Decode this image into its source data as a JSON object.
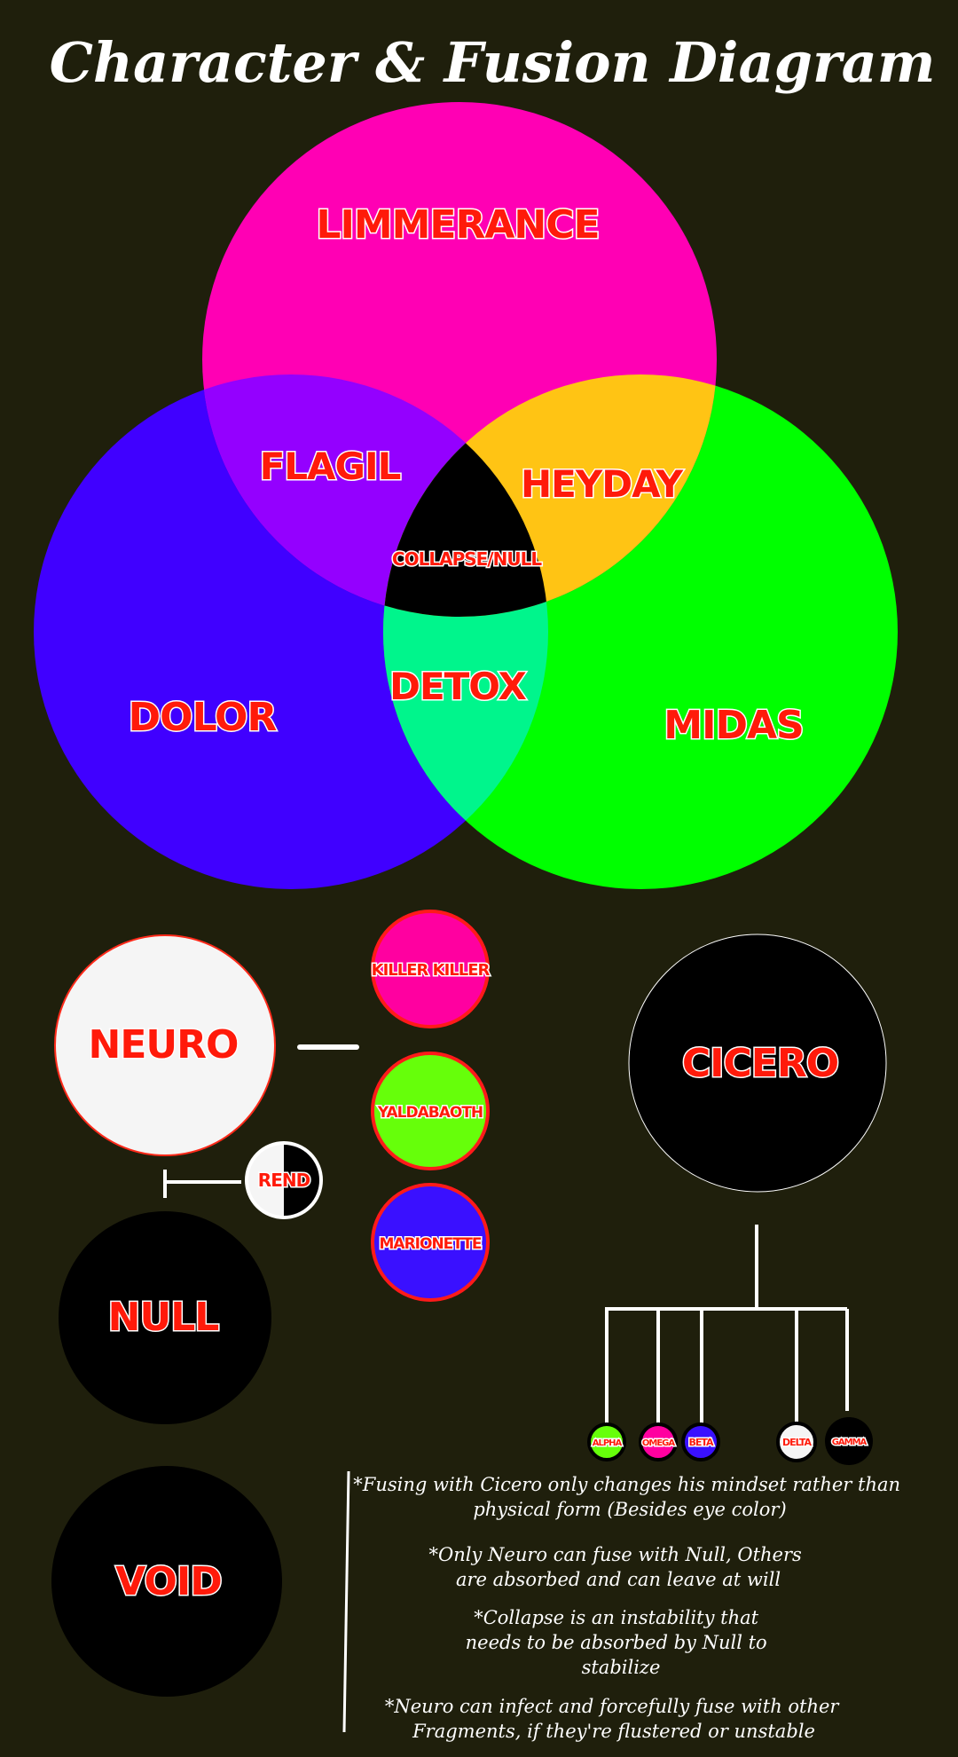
{
  "title": "Character & Fusion Diagram",
  "venn": {
    "top": "LIMMERANCE",
    "left": "DOLOR",
    "right": "MIDAS",
    "top_left": "FLAGIL",
    "top_right": "HEYDAY",
    "bottom": "DETOX",
    "center": "COLLAPSE/NULL"
  },
  "neuro_group": {
    "main": "NEURO",
    "members": [
      "KILLER KILLER",
      "YALDABAOTH",
      "MARIONETTE"
    ],
    "rend": "REND",
    "null": "NULL",
    "void": "VOID"
  },
  "cicero_group": {
    "main": "CICERO",
    "children": [
      "ALPHA",
      "OMEGA",
      "BETA",
      "DELTA",
      "GAMMA"
    ]
  },
  "notes": [
    [
      "*Fusing with Cicero only changes his mindset rather than",
      "physical form (Besides eye color)"
    ],
    [
      "*Only Neuro can fuse with Null, Others",
      "are absorbed and can leave at will"
    ],
    [
      "*Collapse is an instability that",
      "needs to be absorbed by Null to",
      "stabilize"
    ],
    [
      "*Neuro can infect and forcefully fuse with other",
      "Fragments, if they're flustered or unstable"
    ]
  ],
  "colors": {
    "background": "#1f1f0c",
    "limmerance": "#ff00b4",
    "dolor": "#4000ff",
    "midas": "#00ff00",
    "flagil": "#9400ff",
    "heyday": "#ffc414",
    "detox": "#00f58c",
    "collapse": "#000000",
    "label_red": "#ff1a0a",
    "killer_killer": "#ff00a0",
    "yaldabaoth": "#66ff0a",
    "marionette": "#3a10ff"
  }
}
